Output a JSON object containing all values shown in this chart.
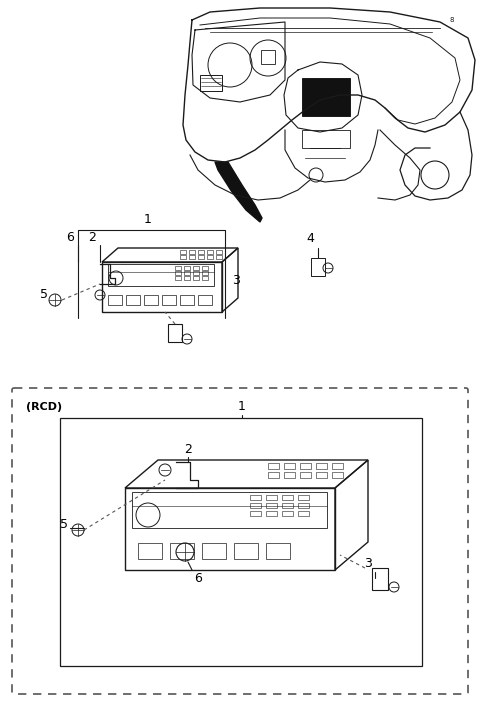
{
  "bg_color": "#ffffff",
  "line_color": "#1a1a1a",
  "dashed_color": "#555555",
  "label_color": "#000000",
  "figsize": [
    4.8,
    7.1
  ],
  "dpi": 100,
  "rcd_label": "(RCD)"
}
